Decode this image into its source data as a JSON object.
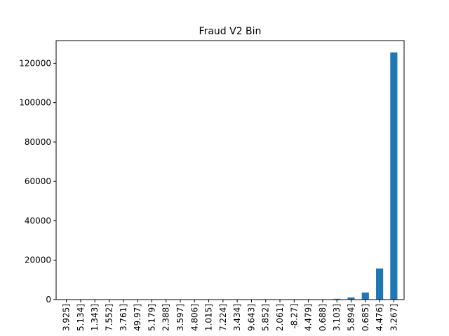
{
  "chart_data": {
    "type": "bar",
    "title": "Fraud V2 Bin",
    "xlabel": "",
    "ylabel": "",
    "ylim": [
      0,
      131500
    ],
    "yticks": [
      0,
      20000,
      40000,
      60000,
      80000,
      100000,
      120000
    ],
    "grid": false,
    "color": "#1f77b4",
    "categories": [
      "3.925]",
      "5.134]",
      "1.343]",
      "7.552]",
      "3.761]",
      "49.97]",
      "5.179]",
      "2.388]",
      "3.597]",
      "4.806]",
      "1.015]",
      "7.224]",
      "3.434]",
      "9.643]",
      "5.852]",
      "2.061]",
      "-8.27]",
      "4.479]",
      "0.688]",
      "3.103]",
      "5.894]",
      "0.685]",
      "4.476]",
      "3.267]"
    ],
    "values": [
      0,
      0,
      0,
      0,
      0,
      0,
      0,
      0,
      0,
      0,
      0,
      0,
      0,
      0,
      0,
      0,
      0,
      0,
      0,
      400,
      1100,
      3600,
      15800,
      125500
    ]
  }
}
